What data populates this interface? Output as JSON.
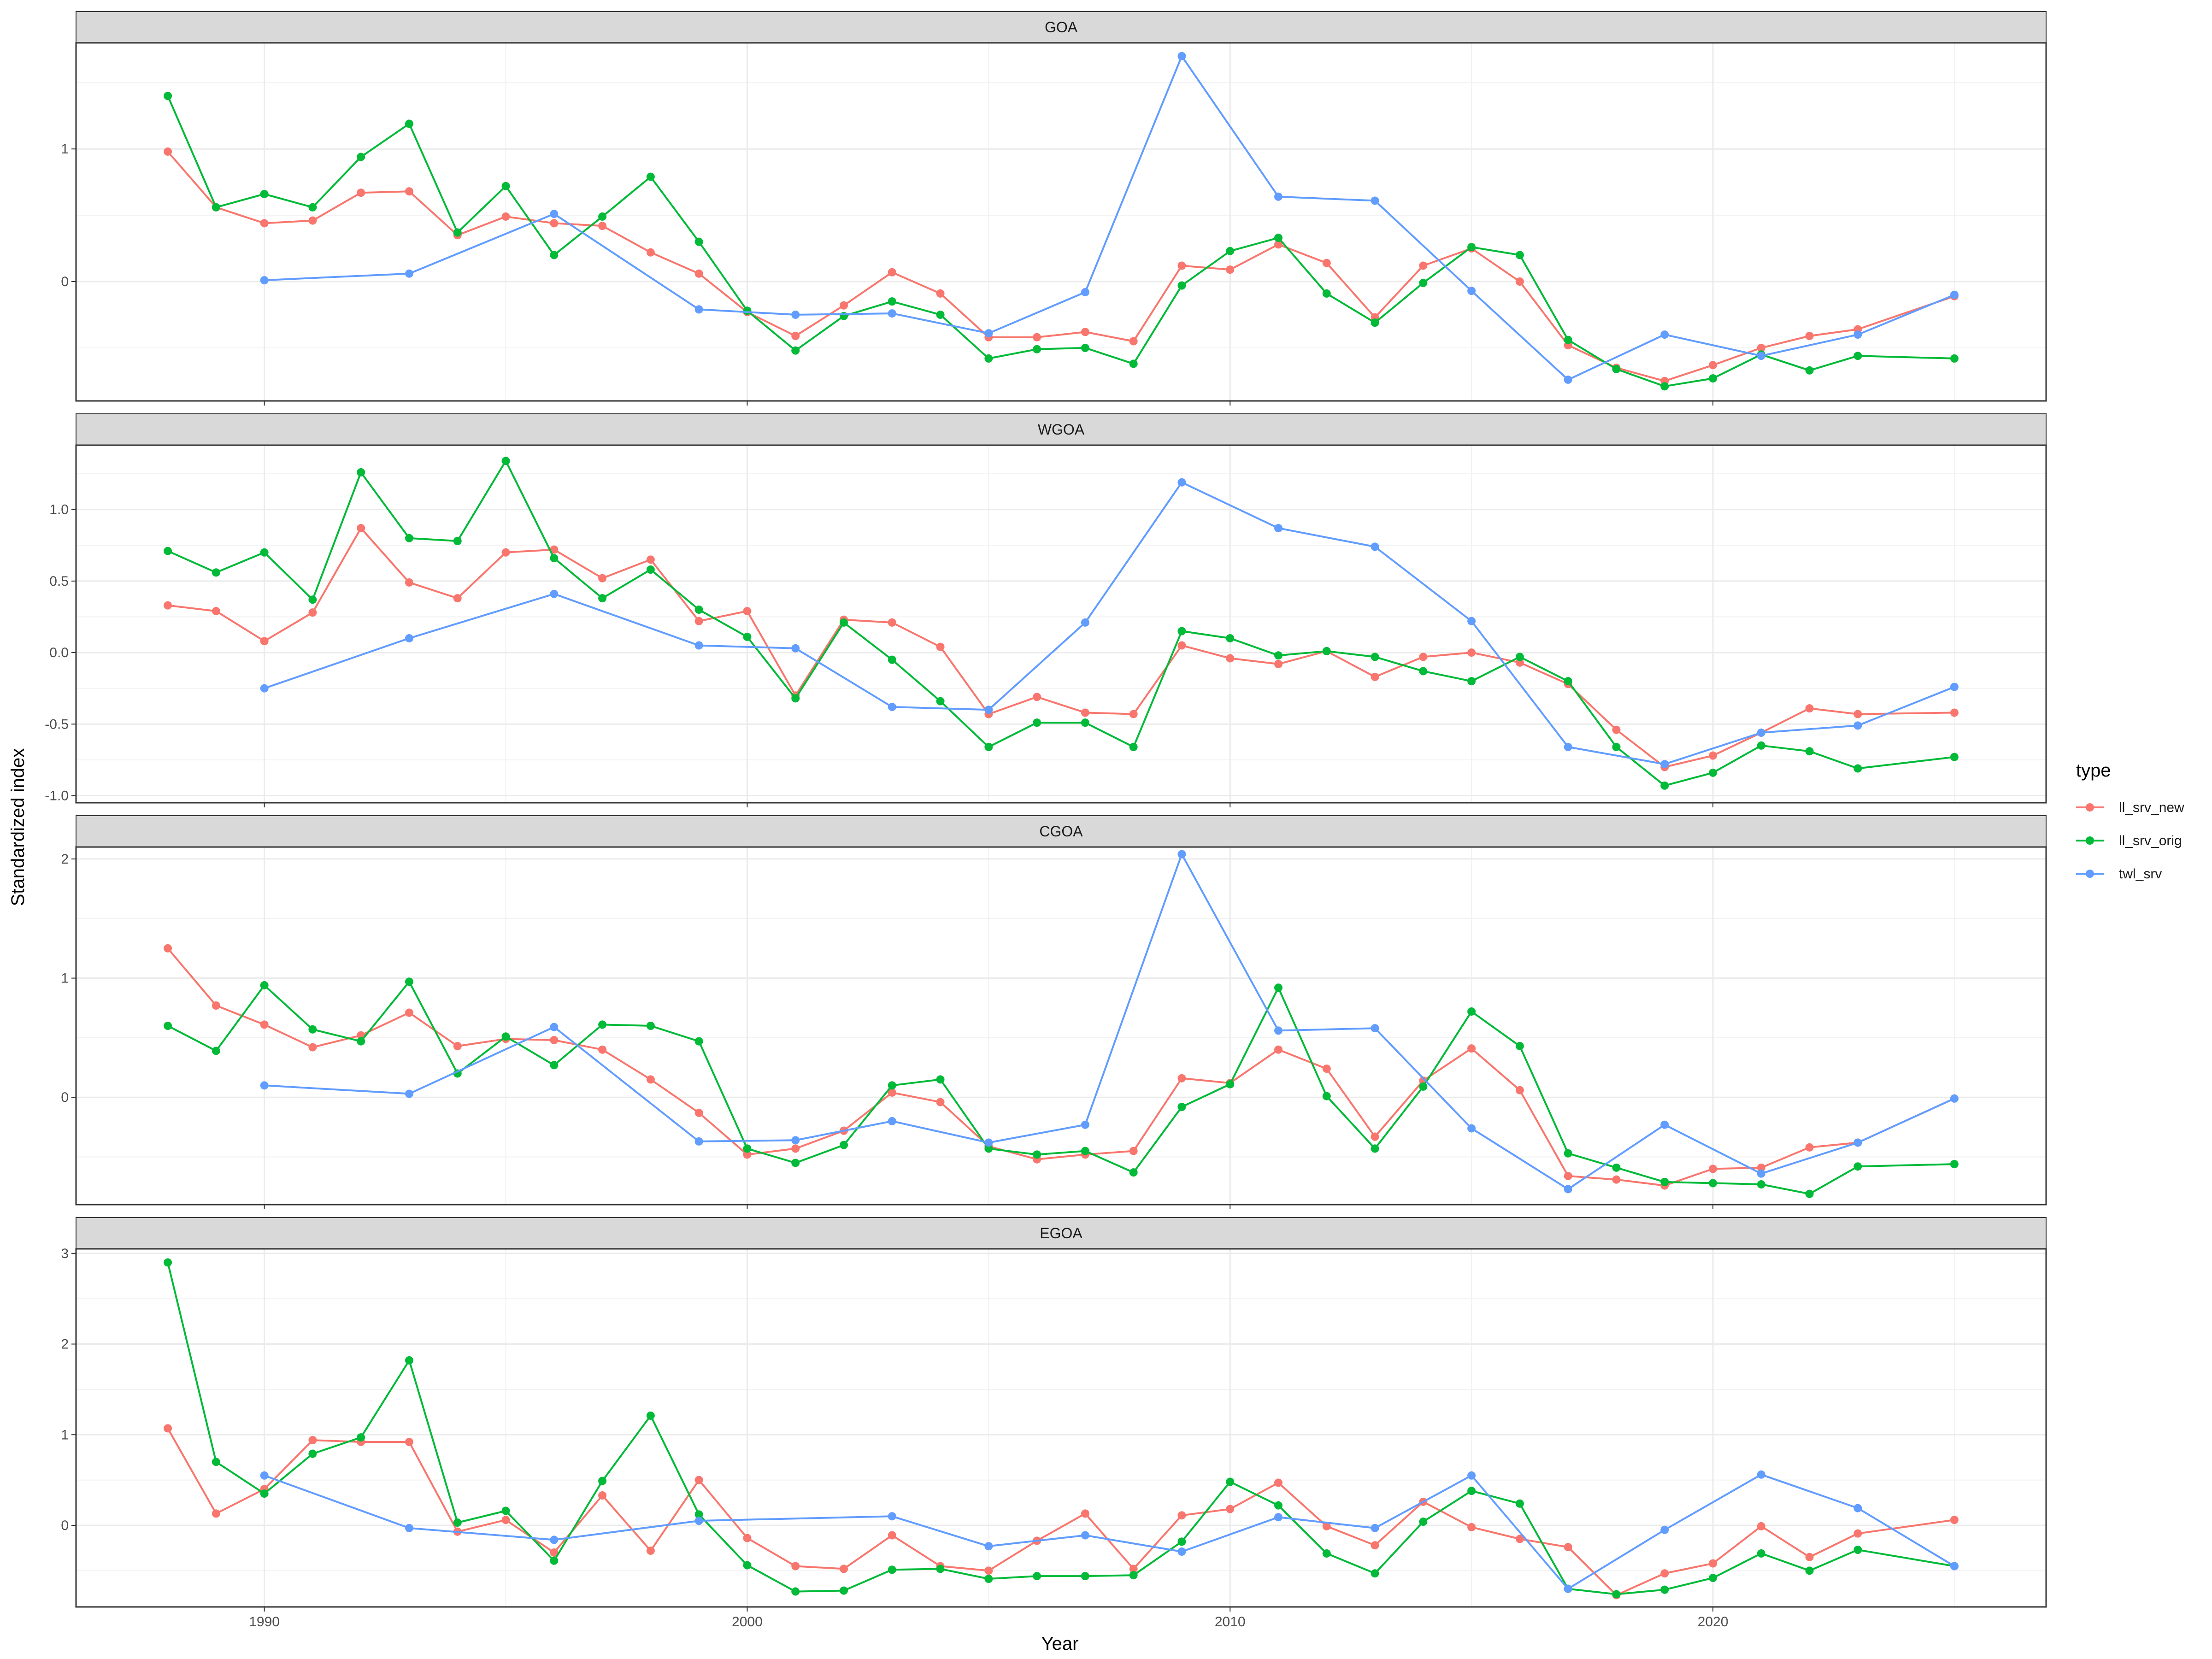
{
  "chart_data": {
    "type": "line",
    "facets": [
      "GOA",
      "WGOA",
      "CGOA",
      "EGOA"
    ],
    "xlabel": "Year",
    "ylabel": "Standardized index",
    "legend_title": "type",
    "x_ticks": [
      1990,
      2000,
      2010,
      2020
    ],
    "xlim": [
      1986.1,
      2026.9
    ],
    "series_styles": [
      {
        "name": "ll_srv_new",
        "color": "#F8766D"
      },
      {
        "name": "ll_srv_orig",
        "color": "#00BA38"
      },
      {
        "name": "twl_srv",
        "color": "#619CFF"
      }
    ],
    "panels": [
      {
        "title": "GOA",
        "ylim": [
          -0.9,
          1.8
        ],
        "y_ticks": [
          0,
          1
        ],
        "y_tick_labels": [
          "0",
          "1"
        ],
        "series": [
          {
            "name": "ll_srv_new",
            "x": [
              1988,
              1989,
              1990,
              1991,
              1992,
              1993,
              1994,
              1995,
              1996,
              1997,
              1998,
              1999,
              2000,
              2001,
              2002,
              2003,
              2004,
              2005,
              2006,
              2007,
              2008,
              2009,
              2010,
              2011,
              2012,
              2013,
              2014,
              2015,
              2016,
              2017,
              2018,
              2019,
              2020,
              2021,
              2022,
              2023,
              2025
            ],
            "values": [
              0.98,
              0.56,
              0.44,
              0.46,
              0.67,
              0.68,
              0.35,
              0.49,
              0.44,
              0.42,
              0.22,
              0.06,
              -0.23,
              -0.41,
              -0.18,
              0.07,
              -0.09,
              -0.42,
              -0.42,
              -0.38,
              -0.45,
              0.12,
              0.09,
              0.28,
              0.14,
              -0.27,
              0.12,
              0.25,
              0.0,
              -0.48,
              -0.65,
              -0.75,
              -0.63,
              -0.5,
              -0.41,
              -0.36,
              -0.11
            ]
          },
          {
            "name": "ll_srv_orig",
            "x": [
              1988,
              1989,
              1990,
              1991,
              1992,
              1993,
              1994,
              1995,
              1996,
              1997,
              1998,
              1999,
              2000,
              2001,
              2002,
              2003,
              2004,
              2005,
              2006,
              2007,
              2008,
              2009,
              2010,
              2011,
              2012,
              2013,
              2014,
              2015,
              2016,
              2017,
              2018,
              2019,
              2020,
              2021,
              2022,
              2023,
              2025
            ],
            "values": [
              1.4,
              0.56,
              0.66,
              0.56,
              0.94,
              1.19,
              0.37,
              0.72,
              0.2,
              0.49,
              0.79,
              0.3,
              -0.22,
              -0.52,
              -0.26,
              -0.15,
              -0.25,
              -0.58,
              -0.51,
              -0.5,
              -0.62,
              -0.03,
              0.23,
              0.33,
              -0.09,
              -0.31,
              -0.01,
              0.26,
              0.2,
              -0.44,
              -0.66,
              -0.79,
              -0.73,
              -0.55,
              -0.67,
              -0.56,
              -0.58
            ]
          },
          {
            "name": "twl_srv",
            "x": [
              1990,
              1993,
              1996,
              1999,
              2001,
              2003,
              2005,
              2007,
              2009,
              2011,
              2013,
              2015,
              2017,
              2019,
              2021,
              2023,
              2025
            ],
            "values": [
              0.01,
              0.06,
              0.51,
              -0.21,
              -0.25,
              -0.24,
              -0.39,
              -0.08,
              1.7,
              0.64,
              0.61,
              -0.07,
              -0.74,
              -0.4,
              -0.56,
              -0.4,
              -0.1
            ]
          }
        ]
      },
      {
        "title": "WGOA",
        "ylim": [
          -1.05,
          1.45
        ],
        "y_ticks": [
          -1.0,
          -0.5,
          0.0,
          0.5,
          1.0
        ],
        "y_tick_labels": [
          "-1.0",
          "-0.5",
          "0.0",
          "0.5",
          "1.0"
        ],
        "series": [
          {
            "name": "ll_srv_new",
            "x": [
              1988,
              1989,
              1990,
              1991,
              1992,
              1993,
              1994,
              1995,
              1996,
              1997,
              1998,
              1999,
              2000,
              2001,
              2002,
              2003,
              2004,
              2005,
              2006,
              2007,
              2008,
              2009,
              2010,
              2011,
              2012,
              2013,
              2014,
              2015,
              2016,
              2017,
              2018,
              2019,
              2020,
              2021,
              2022,
              2023,
              2025
            ],
            "values": [
              0.33,
              0.29,
              0.08,
              0.28,
              0.87,
              0.49,
              0.38,
              0.7,
              0.72,
              0.52,
              0.65,
              0.22,
              0.29,
              -0.3,
              0.23,
              0.21,
              0.04,
              -0.43,
              -0.31,
              -0.42,
              -0.43,
              0.05,
              -0.04,
              -0.08,
              0.01,
              -0.17,
              -0.03,
              0.0,
              -0.07,
              -0.22,
              -0.54,
              -0.8,
              -0.72,
              -0.56,
              -0.39,
              -0.43,
              -0.42
            ]
          },
          {
            "name": "ll_srv_orig",
            "x": [
              1988,
              1989,
              1990,
              1991,
              1992,
              1993,
              1994,
              1995,
              1996,
              1997,
              1998,
              1999,
              2000,
              2001,
              2002,
              2003,
              2004,
              2005,
              2006,
              2007,
              2008,
              2009,
              2010,
              2011,
              2012,
              2013,
              2014,
              2015,
              2016,
              2017,
              2018,
              2019,
              2020,
              2021,
              2022,
              2023,
              2025
            ],
            "values": [
              0.71,
              0.56,
              0.7,
              0.37,
              1.26,
              0.8,
              0.78,
              1.34,
              0.66,
              0.38,
              0.58,
              0.3,
              0.11,
              -0.32,
              0.21,
              -0.05,
              -0.34,
              -0.66,
              -0.49,
              -0.49,
              -0.66,
              0.15,
              0.1,
              -0.02,
              0.01,
              -0.03,
              -0.13,
              -0.2,
              -0.03,
              -0.2,
              -0.66,
              -0.93,
              -0.84,
              -0.65,
              -0.69,
              -0.81,
              -0.73
            ]
          },
          {
            "name": "twl_srv",
            "x": [
              1990,
              1993,
              1996,
              1999,
              2001,
              2003,
              2005,
              2007,
              2009,
              2011,
              2013,
              2015,
              2017,
              2019,
              2021,
              2023,
              2025
            ],
            "values": [
              -0.25,
              0.1,
              0.41,
              0.05,
              0.03,
              -0.38,
              -0.4,
              0.21,
              1.19,
              0.87,
              0.74,
              0.22,
              -0.66,
              -0.78,
              -0.56,
              -0.51,
              -0.24
            ]
          }
        ]
      },
      {
        "title": "CGOA",
        "ylim": [
          -0.9,
          2.1
        ],
        "y_ticks": [
          0,
          1,
          2
        ],
        "y_tick_labels": [
          "0",
          "1",
          "2"
        ],
        "series": [
          {
            "name": "ll_srv_new",
            "x": [
              1988,
              1989,
              1990,
              1991,
              1992,
              1993,
              1994,
              1995,
              1996,
              1997,
              1998,
              1999,
              2000,
              2001,
              2002,
              2003,
              2004,
              2005,
              2006,
              2007,
              2008,
              2009,
              2010,
              2011,
              2012,
              2013,
              2014,
              2015,
              2016,
              2017,
              2018,
              2019,
              2020,
              2021,
              2022,
              2023,
              2025
            ],
            "values": [
              1.25,
              0.77,
              0.61,
              0.42,
              0.52,
              0.71,
              0.43,
              0.49,
              0.48,
              0.4,
              0.15,
              -0.13,
              -0.48,
              -0.43,
              -0.28,
              0.04,
              -0.04,
              -0.41,
              -0.52,
              -0.48,
              -0.45,
              0.16,
              0.12,
              0.4,
              0.24,
              -0.33,
              0.14,
              0.41,
              0.06,
              -0.66,
              -0.69,
              -0.74,
              -0.6,
              -0.59,
              -0.42,
              -0.38,
              -0.01
            ]
          },
          {
            "name": "ll_srv_orig",
            "x": [
              1988,
              1989,
              1990,
              1991,
              1992,
              1993,
              1994,
              1995,
              1996,
              1997,
              1998,
              1999,
              2000,
              2001,
              2002,
              2003,
              2004,
              2005,
              2006,
              2007,
              2008,
              2009,
              2010,
              2011,
              2012,
              2013,
              2014,
              2015,
              2016,
              2017,
              2018,
              2019,
              2020,
              2021,
              2022,
              2023,
              2025
            ],
            "values": [
              0.6,
              0.39,
              0.94,
              0.57,
              0.47,
              0.97,
              0.2,
              0.51,
              0.27,
              0.61,
              0.6,
              0.47,
              -0.43,
              -0.55,
              -0.4,
              0.1,
              0.15,
              -0.43,
              -0.48,
              -0.45,
              -0.63,
              -0.08,
              0.11,
              0.92,
              0.01,
              -0.43,
              0.09,
              0.72,
              0.43,
              -0.47,
              -0.59,
              -0.71,
              -0.72,
              -0.73,
              -0.81,
              -0.58,
              -0.56
            ]
          },
          {
            "name": "twl_srv",
            "x": [
              1990,
              1993,
              1996,
              1999,
              2001,
              2003,
              2005,
              2007,
              2009,
              2011,
              2013,
              2015,
              2017,
              2019,
              2021,
              2023,
              2025
            ],
            "values": [
              0.1,
              0.03,
              0.59,
              -0.37,
              -0.36,
              -0.2,
              -0.38,
              -0.23,
              2.04,
              0.56,
              0.58,
              -0.26,
              -0.77,
              -0.23,
              -0.64,
              -0.38,
              -0.01
            ]
          }
        ]
      },
      {
        "title": "EGOA",
        "ylim": [
          -0.9,
          3.05
        ],
        "y_ticks": [
          0,
          1,
          2,
          3
        ],
        "y_tick_labels": [
          "0",
          "1",
          "2",
          "3"
        ],
        "series": [
          {
            "name": "ll_srv_new",
            "x": [
              1988,
              1989,
              1990,
              1991,
              1992,
              1993,
              1994,
              1995,
              1996,
              1997,
              1998,
              1999,
              2000,
              2001,
              2002,
              2003,
              2004,
              2005,
              2006,
              2007,
              2008,
              2009,
              2010,
              2011,
              2012,
              2013,
              2014,
              2015,
              2016,
              2017,
              2018,
              2019,
              2020,
              2021,
              2022,
              2023,
              2025
            ],
            "values": [
              1.07,
              0.13,
              0.4,
              0.94,
              0.92,
              0.92,
              -0.07,
              0.06,
              -0.3,
              0.33,
              -0.28,
              0.5,
              -0.14,
              -0.45,
              -0.48,
              -0.11,
              -0.45,
              -0.5,
              -0.17,
              0.13,
              -0.48,
              0.11,
              0.18,
              0.47,
              -0.01,
              -0.22,
              0.26,
              -0.02,
              -0.15,
              -0.24,
              -0.77,
              -0.53,
              -0.42,
              -0.01,
              -0.35,
              -0.09,
              0.06
            ]
          },
          {
            "name": "ll_srv_orig",
            "x": [
              1988,
              1989,
              1990,
              1991,
              1992,
              1993,
              1994,
              1995,
              1996,
              1997,
              1998,
              1999,
              2000,
              2001,
              2002,
              2003,
              2004,
              2005,
              2006,
              2007,
              2008,
              2009,
              2010,
              2011,
              2012,
              2013,
              2014,
              2015,
              2016,
              2017,
              2018,
              2019,
              2020,
              2021,
              2022,
              2023,
              2025
            ],
            "values": [
              2.9,
              0.7,
              0.35,
              0.79,
              0.97,
              1.82,
              0.03,
              0.16,
              -0.39,
              0.49,
              1.21,
              0.12,
              -0.44,
              -0.73,
              -0.72,
              -0.49,
              -0.48,
              -0.59,
              -0.56,
              -0.56,
              -0.55,
              -0.18,
              0.48,
              0.22,
              -0.31,
              -0.53,
              0.04,
              0.38,
              0.24,
              -0.7,
              -0.76,
              -0.71,
              -0.58,
              -0.31,
              -0.5,
              -0.27,
              -0.45
            ]
          },
          {
            "name": "twl_srv",
            "x": [
              1990,
              1993,
              1996,
              1999,
              2003,
              2005,
              2007,
              2009,
              2011,
              2013,
              2015,
              2017,
              2019,
              2021,
              2023,
              2025
            ],
            "values": [
              0.55,
              -0.03,
              -0.16,
              0.05,
              0.1,
              -0.23,
              -0.11,
              -0.29,
              0.09,
              -0.03,
              0.55,
              -0.7,
              -0.05,
              0.56,
              0.19,
              -0.45
            ]
          }
        ]
      }
    ]
  }
}
